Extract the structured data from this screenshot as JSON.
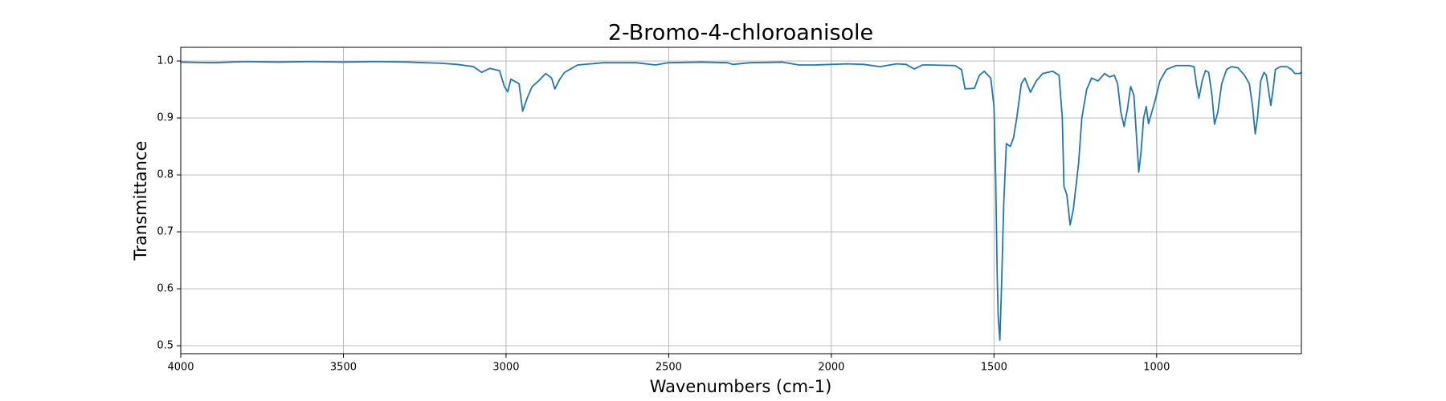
{
  "chart_data": {
    "type": "line",
    "title": "2-Bromo-4-chloroanisole",
    "xlabel": "Wavenumbers (cm-1)",
    "ylabel": "Transmittance",
    "color": "#1f77b4",
    "grid": true,
    "xinverted": true,
    "xlim": [
      4000,
      555
    ],
    "ylim": [
      0.486,
      1.024
    ],
    "xticks": [
      4000,
      3500,
      3000,
      2500,
      2000,
      1500,
      1000
    ],
    "yticks": [
      0.5,
      0.6,
      0.7,
      0.8,
      0.9,
      {
        "value": 1,
        "label": "1.0"
      }
    ],
    "x": [
      4000,
      3900,
      3800,
      3700,
      3600,
      3500,
      3400,
      3300,
      3200,
      3150,
      3100,
      3075,
      3050,
      3020,
      3005,
      2995,
      2985,
      2960,
      2949,
      2935,
      2920,
      2900,
      2878,
      2860,
      2850,
      2835,
      2820,
      2780,
      2700,
      2600,
      2541,
      2500,
      2400,
      2320,
      2303,
      2250,
      2150,
      2100,
      2050,
      1950,
      1900,
      1850,
      1800,
      1770,
      1745,
      1720,
      1700,
      1620,
      1600,
      1589,
      1560,
      1545,
      1530,
      1510,
      1500,
      1495,
      1490,
      1487,
      1482,
      1477,
      1470,
      1462,
      1450,
      1440,
      1430,
      1416,
      1405,
      1395,
      1388,
      1370,
      1350,
      1320,
      1300,
      1290,
      1285,
      1276,
      1266,
      1256,
      1240,
      1230,
      1215,
      1200,
      1180,
      1160,
      1145,
      1130,
      1120,
      1110,
      1100,
      1090,
      1080,
      1070,
      1060,
      1055,
      1048,
      1040,
      1032,
      1025,
      1015,
      1005,
      990,
      970,
      940,
      900,
      885,
      878,
      870,
      860,
      850,
      840,
      830,
      822,
      812,
      800,
      785,
      770,
      750,
      730,
      715,
      705,
      697,
      690,
      680,
      670,
      663,
      649,
      642,
      635,
      620,
      600,
      585,
      575,
      560,
      555
    ],
    "values": [
      0.998,
      0.997,
      0.999,
      0.998,
      0.999,
      0.998,
      0.999,
      0.998,
      0.996,
      0.994,
      0.99,
      0.98,
      0.987,
      0.983,
      0.955,
      0.946,
      0.968,
      0.96,
      0.912,
      0.935,
      0.955,
      0.965,
      0.978,
      0.97,
      0.951,
      0.968,
      0.98,
      0.993,
      0.997,
      0.997,
      0.993,
      0.997,
      0.998,
      0.997,
      0.994,
      0.997,
      0.998,
      0.993,
      0.993,
      0.995,
      0.994,
      0.99,
      0.995,
      0.994,
      0.986,
      0.993,
      0.993,
      0.992,
      0.985,
      0.951,
      0.952,
      0.975,
      0.982,
      0.97,
      0.92,
      0.8,
      0.62,
      0.55,
      0.51,
      0.6,
      0.75,
      0.855,
      0.85,
      0.865,
      0.9,
      0.96,
      0.97,
      0.955,
      0.945,
      0.965,
      0.978,
      0.982,
      0.975,
      0.9,
      0.78,
      0.765,
      0.712,
      0.74,
      0.82,
      0.9,
      0.95,
      0.97,
      0.965,
      0.978,
      0.972,
      0.975,
      0.96,
      0.91,
      0.885,
      0.915,
      0.955,
      0.94,
      0.85,
      0.805,
      0.84,
      0.9,
      0.92,
      0.89,
      0.91,
      0.93,
      0.965,
      0.985,
      0.992,
      0.992,
      0.99,
      0.96,
      0.935,
      0.965,
      0.983,
      0.98,
      0.94,
      0.889,
      0.91,
      0.96,
      0.985,
      0.99,
      0.988,
      0.975,
      0.96,
      0.92,
      0.872,
      0.9,
      0.965,
      0.98,
      0.975,
      0.922,
      0.95,
      0.985,
      0.99,
      0.99,
      0.985,
      0.978,
      0.978,
      0.98
    ]
  }
}
